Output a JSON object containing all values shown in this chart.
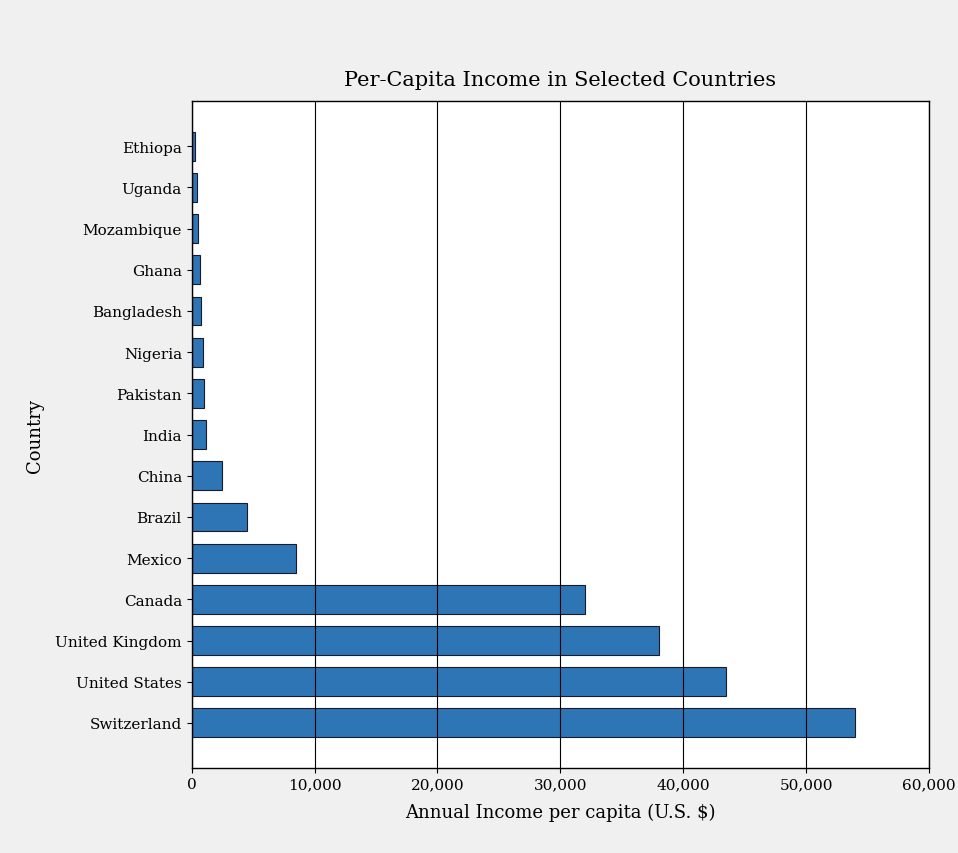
{
  "title": "Per-Capita Income in Selected Countries",
  "xlabel": "Annual Income per capita (U.S. $)",
  "ylabel": "Country",
  "background_color": "#f0f0f0",
  "plot_background": "#ffffff",
  "bar_color": "#2e75b6",
  "bar_edge_color": "#1a1a2e",
  "countries": [
    "Switzerland",
    "United States",
    "United Kingdom",
    "Canada",
    "Mexico",
    "Brazil",
    "China",
    "India",
    "Pakistan",
    "Nigeria",
    "Bangladesh",
    "Ghana",
    "Mozambique",
    "Uganda",
    "Ethiopa"
  ],
  "values": [
    54000,
    43500,
    38000,
    32000,
    8500,
    4500,
    2500,
    1200,
    1000,
    900,
    750,
    700,
    500,
    400,
    300
  ],
  "xlim": [
    0,
    60000
  ],
  "xticks": [
    0,
    10000,
    20000,
    30000,
    40000,
    50000,
    60000
  ],
  "xticklabels": [
    "0",
    "10,000",
    "20,000",
    "30,000",
    "40,000",
    "50,000",
    "60,000"
  ],
  "title_fontsize": 15,
  "axis_label_fontsize": 13,
  "tick_fontsize": 11,
  "grid_color": "#000000",
  "grid_linewidth": 0.8
}
